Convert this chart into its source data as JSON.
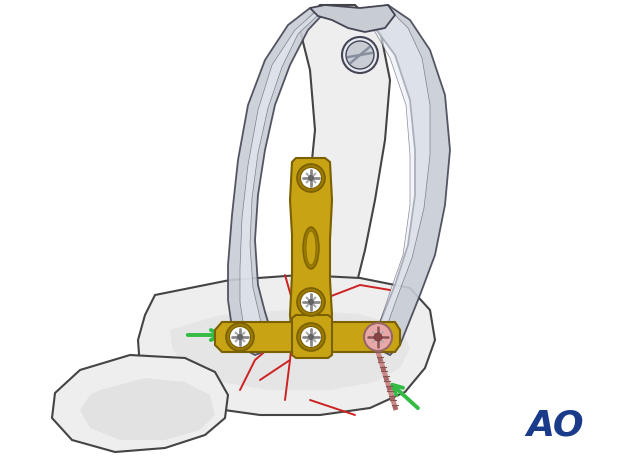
{
  "bg_color": "#ffffff",
  "ao_text": "AO",
  "ao_color": "#1a3a8a",
  "ao_fontsize": 26,
  "bone_color": "#eeeeee",
  "bone_shadow": "#d8d8d8",
  "bone_edge_color": "#444444",
  "plate_color": "#c8a414",
  "plate_dark": "#9a7a00",
  "plate_light": "#e0bc30",
  "plate_edge": "#7a6000",
  "screw_hole_bg": "#b89010",
  "screw_cross": "#7a5800",
  "fracture_color": "#cc2222",
  "clamp_color": "#c8cdd4",
  "clamp_light": "#e8edf4",
  "clamp_dark": "#8890a0",
  "clamp_edge": "#444455",
  "arrow_color": "#33bb44",
  "pink_color": "#e8a8a8",
  "screw_shaft_color": "#b89898"
}
